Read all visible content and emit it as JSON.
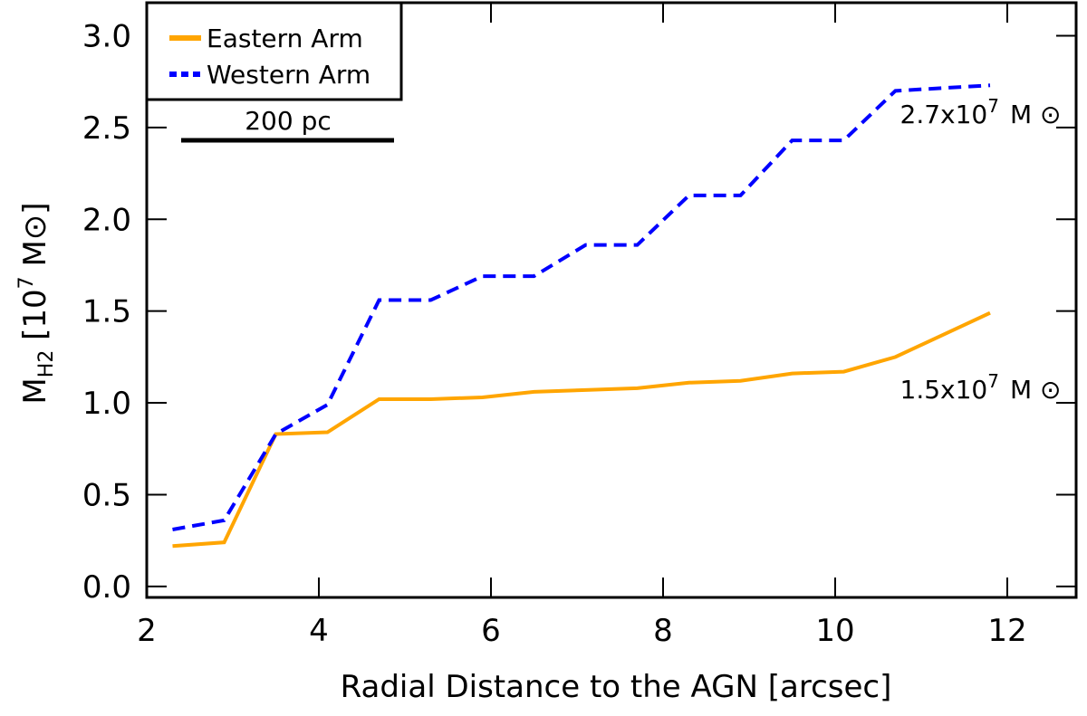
{
  "chart_data": {
    "type": "line",
    "x_label": "Radial Distance to the AGN [arcsec]",
    "y_label": {
      "main": "M",
      "sub": "H2",
      "pre": " [10",
      "sup": "7",
      "post": " M⊙]"
    },
    "x": [
      2.3,
      2.9,
      3.5,
      4.1,
      4.7,
      5.3,
      5.9,
      6.5,
      7.1,
      7.7,
      8.3,
      8.9,
      9.5,
      10.1,
      10.7,
      11.8
    ],
    "series": [
      {
        "name": "Eastern Arm",
        "color": "#ffa500",
        "dash": false,
        "values": [
          0.22,
          0.24,
          0.83,
          0.84,
          1.02,
          1.02,
          1.03,
          1.06,
          1.07,
          1.08,
          1.11,
          1.12,
          1.16,
          1.17,
          1.25,
          1.49
        ]
      },
      {
        "name": "Western Arm",
        "color": "#0000ff",
        "dash": true,
        "values": [
          0.31,
          0.36,
          0.83,
          0.99,
          1.56,
          1.56,
          1.69,
          1.69,
          1.86,
          1.86,
          2.13,
          2.13,
          2.43,
          2.43,
          2.7,
          2.73
        ]
      }
    ],
    "annotations": [
      {
        "text": "2.7x10",
        "sup": "7",
        "unit": "M ⊙",
        "x": 10.7,
        "y": 2.5
      },
      {
        "text": "1.5x10",
        "sup": "7",
        "unit": "M ⊙",
        "x": 10.7,
        "y": 1.0
      }
    ],
    "scale_bar": "200 pc",
    "xlim": [
      2,
      12.8
    ],
    "ylim": [
      -0.06,
      3.18
    ],
    "xticks": [
      2,
      4,
      6,
      8,
      10,
      12
    ],
    "yticks": [
      {
        "value": 0,
        "label": "0.0"
      },
      0.5,
      {
        "value": 1,
        "label": "1.0"
      },
      1.5,
      {
        "value": 2,
        "label": "2.0"
      },
      2.5,
      {
        "value": 3,
        "label": "3.0"
      }
    ],
    "legend": "upper-left"
  }
}
